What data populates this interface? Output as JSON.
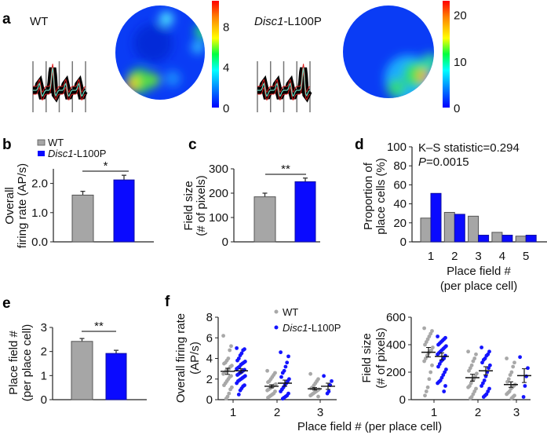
{
  "panel_labels": {
    "a": "a",
    "b": "b",
    "c": "c",
    "d": "d",
    "e": "e",
    "f": "f"
  },
  "genotypes": {
    "wt": "WT",
    "mut_gene": "Disc1",
    "mut_suffix": "-L100P"
  },
  "colors": {
    "wt": "#a6a6a6",
    "mut": "#0a0aff",
    "wt_dot": "#a8a8a8",
    "mut_dot": "#1414ff"
  },
  "chart_data": [
    {
      "type": "heatmap",
      "title": "WT",
      "colorbar": {
        "min": 0,
        "max": 10.5,
        "ticks": [
          0,
          4,
          8
        ],
        "colormap": "jet"
      }
    },
    {
      "type": "heatmap",
      "title": "Disc1-L100P",
      "colorbar": {
        "min": 0,
        "max": 23,
        "ticks": [
          0,
          10,
          20
        ],
        "colormap": "jet"
      }
    },
    {
      "type": "bar",
      "ylabel_lines": [
        "Overall",
        "firing rate (AP/s)"
      ],
      "categories": [
        "WT",
        "Disc1-L100P"
      ],
      "values": [
        1.6,
        2.12
      ],
      "errors": [
        0.13,
        0.16
      ],
      "ylim": [
        0,
        2.5
      ],
      "yticks": [
        "0.0",
        "1.0",
        "2.0"
      ],
      "ytick_values": [
        0,
        1,
        2
      ],
      "significance": "*",
      "legend": [
        "WT",
        "Disc1-L100P"
      ]
    },
    {
      "type": "bar",
      "ylabel_lines": [
        "Field size",
        "(# of pixels)"
      ],
      "categories": [
        "WT",
        "Disc1-L100P"
      ],
      "values": [
        185,
        247
      ],
      "errors": [
        15,
        15
      ],
      "ylim": [
        0,
        300
      ],
      "yticks": [
        "0",
        "100",
        "200",
        "300"
      ],
      "ytick_values": [
        0,
        100,
        200,
        300
      ],
      "significance": "**"
    },
    {
      "type": "bar",
      "ylabel_lines": [
        "Proportion of",
        "place cells (%)"
      ],
      "xlabel_lines": [
        "Place field #",
        "(per place cell)"
      ],
      "categories": [
        "1",
        "2",
        "3",
        "4",
        "5"
      ],
      "series": [
        {
          "name": "WT",
          "values": [
            25,
            31,
            27,
            10,
            6
          ]
        },
        {
          "name": "Disc1-L100P",
          "values": [
            51,
            29,
            7,
            7,
            7
          ]
        }
      ],
      "ylim": [
        0,
        100
      ],
      "yticks": [
        "0",
        "20",
        "40",
        "60",
        "80",
        "100"
      ],
      "ytick_values": [
        0,
        20,
        40,
        60,
        80,
        100
      ],
      "annotations": {
        "ks": "K–S statistic=0.294",
        "p_label": "P",
        "p_value": "=0.0015"
      }
    },
    {
      "type": "bar",
      "ylabel_lines": [
        "Place field #",
        "(per place cell)"
      ],
      "categories": [
        "WT",
        "Disc1-L100P"
      ],
      "values": [
        2.42,
        1.92
      ],
      "errors": [
        0.12,
        0.13
      ],
      "ylim": [
        0,
        3
      ],
      "yticks": [
        "0",
        "1",
        "2",
        "3"
      ],
      "ytick_values": [
        0,
        1,
        2,
        3
      ],
      "significance": "**"
    },
    {
      "type": "scatter",
      "ylabel_lines": [
        "Overall  firing rate",
        "(AP/s)"
      ],
      "categories": [
        "1",
        "2",
        "3"
      ],
      "ylim": [
        0,
        8
      ],
      "yticks": [
        "0",
        "2",
        "4",
        "6",
        "8"
      ],
      "ytick_values": [
        0,
        2,
        4,
        6,
        8
      ],
      "legend": [
        "WT",
        "Disc1-L100P"
      ],
      "series": [
        {
          "name": "WT",
          "means": [
            2.75,
            1.3,
            1.05
          ],
          "sem": [
            0.3,
            0.15,
            0.12
          ],
          "points": [
            [
              6.2,
              5.2,
              4.8,
              4.0,
              3.8,
              3.6,
              3.5,
              3.3,
              3.2,
              3.0,
              2.9,
              2.8,
              2.6,
              2.5,
              2.3,
              2.2,
              2.0,
              1.8,
              1.6,
              1.4,
              1.2,
              1.0,
              0.6,
              0.3,
              0.1
            ],
            [
              2.8,
              2.6,
              2.4,
              2.2,
              2.0,
              1.8,
              1.7,
              1.5,
              1.4,
              1.3,
              1.2,
              1.1,
              1.0,
              0.9,
              0.8,
              0.6,
              0.5,
              0.4,
              0.3,
              0.2
            ],
            [
              2.5,
              2.0,
              1.8,
              1.6,
              1.4,
              1.2,
              1.1,
              1.0,
              0.9,
              0.8,
              0.7,
              0.6,
              0.5,
              0.4,
              0.3
            ]
          ]
        },
        {
          "name": "Disc1-L100P",
          "means": [
            2.8,
            1.6,
            1.3
          ],
          "sem": [
            0.2,
            0.3,
            0.3
          ],
          "points": [
            [
              5.0,
              4.9,
              4.8,
              4.5,
              4.3,
              4.0,
              3.8,
              3.7,
              3.6,
              3.5,
              3.4,
              3.2,
              3.1,
              3.0,
              2.9,
              2.8,
              2.7,
              2.6,
              2.5,
              2.4,
              2.3,
              2.2,
              2.1,
              2.0,
              1.9,
              1.8,
              1.6,
              1.4,
              1.3,
              1.1,
              0.9,
              0.5
            ],
            [
              4.6,
              4.2,
              3.6,
              3.2,
              2.8,
              2.6,
              2.2,
              2.0,
              1.8,
              1.6,
              1.4,
              1.2,
              1.0,
              0.8,
              0.6,
              0.4,
              0.3,
              0.2,
              0.1
            ],
            [
              2.3,
              1.8,
              1.4,
              0.8,
              0.6
            ]
          ]
        }
      ]
    },
    {
      "type": "scatter",
      "ylabel_lines": [
        "Field  size",
        "(# of pixels)"
      ],
      "categories": [
        "1",
        "2",
        "3"
      ],
      "ylim": [
        0,
        600
      ],
      "yticks": [
        "0",
        "200",
        "400",
        "600"
      ],
      "ytick_values": [
        0,
        200,
        400,
        600
      ],
      "xlabel": "Place field # (per place cell)",
      "series": [
        {
          "name": "WT",
          "means": [
            345,
            160,
            110
          ],
          "sem": [
            35,
            25,
            20
          ],
          "points": [
            [
              520,
              500,
              480,
              460,
              440,
              420,
              400,
              380,
              360,
              350,
              340,
              320,
              300,
              280,
              250,
              200,
              150,
              90,
              60,
              30
            ],
            [
              350,
              330,
              300,
              280,
              250,
              230,
              210,
              190,
              170,
              150,
              140,
              120,
              100,
              90,
              80,
              60,
              40,
              20,
              10
            ],
            [
              300,
              270,
              240,
              200,
              180,
              150,
              130,
              110,
              100,
              90,
              80,
              60,
              50,
              40,
              30,
              20,
              10
            ]
          ]
        },
        {
          "name": "Disc1-L100P",
          "means": [
            315,
            210,
            175
          ],
          "sem": [
            25,
            30,
            50
          ],
          "points": [
            [
              460,
              450,
              440,
              430,
              420,
              410,
              400,
              390,
              380,
              370,
              360,
              350,
              340,
              330,
              320,
              300,
              290,
              280,
              260,
              240,
              220,
              200,
              180,
              160,
              140,
              130,
              120,
              100,
              60
            ],
            [
              380,
              350,
              330,
              320,
              300,
              290,
              270,
              250,
              230,
              200,
              170,
              140,
              120,
              100,
              80,
              60,
              40,
              30,
              20
            ],
            [
              310,
              230,
              170,
              100,
              20
            ]
          ]
        }
      ]
    }
  ]
}
